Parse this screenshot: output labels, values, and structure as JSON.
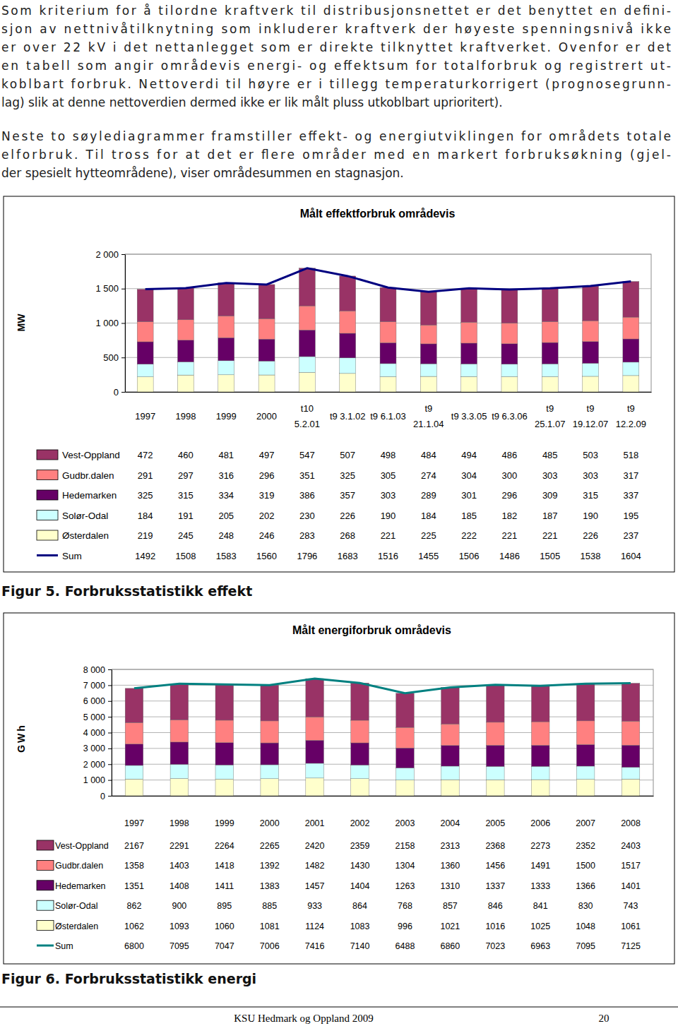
{
  "paragraphs": [
    [
      "Som kriterium for å tilordne kraftverk til distribusjonsnettet er det benyttet en defini-",
      "sjon av nettnivåtilknytning som inkluderer kraftverk der høyeste spenningsnivå ikke",
      "er over 22 kV i det nettanlegget som er direkte tilknyttet kraftverket. Ovenfor er det",
      "en tabell som angir områdevis energi- og effektsum for totalforbruk og registrert ut-",
      "koblbart forbruk. Nettoverdi til høyre er i tillegg temperaturkorrigert (prognosegrunn-",
      "lag) slik at denne nettoverdien dermed ikke er lik målt pluss utkoblbart uprioritert)."
    ],
    [
      "Neste to søylediagrammer framstiller effekt- og energiutviklingen for områdets totale",
      "elforbruk. Til tross for at det er flere områder med en markert forbruksøkning (gjel-",
      "der spesielt hytteområdene), viser områdesummen en stagnasjon."
    ]
  ],
  "chart_data": [
    {
      "type": "bar",
      "title": "Målt effektforbruk områdevis",
      "y_label": "MW",
      "stacked": true,
      "grid": true,
      "legend": "bottom",
      "categories": [
        "1997",
        "1998",
        "1999",
        "2000",
        "t10\n5.2.01",
        "t9 3.1.02",
        "t9 6.1.03",
        "t9\n21.1.04",
        "t9 3.3.05",
        "t9 6.3.06",
        "t9\n25.1.07",
        "t9\n19.12.07",
        "t9\n12.2.09"
      ],
      "ylim": [
        0,
        2000
      ],
      "yticks": [
        0,
        500,
        {
          "value": 1000,
          "label": "1 000"
        },
        {
          "value": 1500,
          "label": "1 500"
        },
        {
          "value": 2000,
          "label": "2 000"
        }
      ],
      "series": [
        {
          "name": "Vest-Oppland",
          "type": "bar",
          "color": "#993366",
          "values": [
            472,
            460,
            481,
            497,
            547,
            507,
            498,
            484,
            494,
            486,
            485,
            503,
            518
          ]
        },
        {
          "name": "Gudbr.dalen",
          "type": "bar",
          "color": "#ff8080",
          "values": [
            291,
            297,
            316,
            296,
            351,
            325,
            305,
            274,
            304,
            300,
            303,
            303,
            317
          ]
        },
        {
          "name": "Hedemarken",
          "type": "bar",
          "color": "#660066",
          "values": [
            325,
            315,
            334,
            319,
            386,
            357,
            303,
            289,
            301,
            296,
            309,
            315,
            337
          ]
        },
        {
          "name": "Solør-Odal",
          "type": "bar",
          "color": "#ccffff",
          "values": [
            184,
            191,
            205,
            202,
            230,
            226,
            190,
            184,
            185,
            182,
            187,
            190,
            195
          ]
        },
        {
          "name": "Østerdalen",
          "type": "bar",
          "color": "#ffffcc",
          "values": [
            219,
            245,
            248,
            246,
            283,
            268,
            221,
            225,
            222,
            221,
            221,
            226,
            237
          ]
        },
        {
          "name": "Sum",
          "type": "line",
          "color": "#000080",
          "values": [
            1492,
            1508,
            1583,
            1560,
            1796,
            1683,
            1516,
            1455,
            1506,
            1486,
            1505,
            1538,
            1604
          ]
        }
      ]
    },
    {
      "type": "bar",
      "title": "Målt energiforbruk områdevis",
      "y_label": "GWh",
      "stacked": true,
      "grid": true,
      "legend": "bottom",
      "categories": [
        "1997",
        "1998",
        "1999",
        "2000",
        "2001",
        "2002",
        "2003",
        "2004",
        "2005",
        "2006",
        "2007",
        "2008"
      ],
      "ylim": [
        0,
        8000
      ],
      "yticks": [
        0,
        {
          "value": 1000,
          "label": "1 000"
        },
        {
          "value": 2000,
          "label": "2 000"
        },
        {
          "value": 3000,
          "label": "3 000"
        },
        {
          "value": 4000,
          "label": "4 000"
        },
        {
          "value": 5000,
          "label": "5 000"
        },
        {
          "value": 6000,
          "label": "6 000"
        },
        {
          "value": 7000,
          "label": "7 000"
        },
        {
          "value": 8000,
          "label": "8 000"
        }
      ],
      "series": [
        {
          "name": "Vest-Oppland",
          "type": "bar",
          "color": "#993366",
          "values": [
            2167,
            2291,
            2264,
            2265,
            2420,
            2359,
            2158,
            2313,
            2368,
            2273,
            2352,
            2403
          ]
        },
        {
          "name": "Gudbr.dalen",
          "type": "bar",
          "color": "#ff8080",
          "values": [
            1358,
            1403,
            1418,
            1392,
            1482,
            1430,
            1304,
            1360,
            1456,
            1491,
            1500,
            1517
          ]
        },
        {
          "name": "Hedemarken",
          "type": "bar",
          "color": "#660066",
          "values": [
            1351,
            1408,
            1411,
            1383,
            1457,
            1404,
            1263,
            1310,
            1337,
            1333,
            1366,
            1401
          ]
        },
        {
          "name": "Solør-Odal",
          "type": "bar",
          "color": "#ccffff",
          "values": [
            862,
            900,
            895,
            885,
            933,
            864,
            768,
            857,
            846,
            841,
            830,
            743
          ]
        },
        {
          "name": "Østerdalen",
          "type": "bar",
          "color": "#ffffcc",
          "values": [
            1062,
            1093,
            1060,
            1081,
            1124,
            1083,
            996,
            1021,
            1016,
            1025,
            1048,
            1061
          ]
        },
        {
          "name": "Sum",
          "type": "line",
          "color": "#008080",
          "values": [
            6800,
            7095,
            7047,
            7006,
            7416,
            7140,
            6488,
            6860,
            7023,
            6963,
            7095,
            7125
          ]
        }
      ]
    }
  ],
  "captions": [
    "Figur 5. Forbruksstatistikk effekt",
    "Figur 6. Forbruksstatistikk energi"
  ],
  "footer": {
    "text": "KSU Hedmark og Oppland 2009",
    "page": 20
  }
}
